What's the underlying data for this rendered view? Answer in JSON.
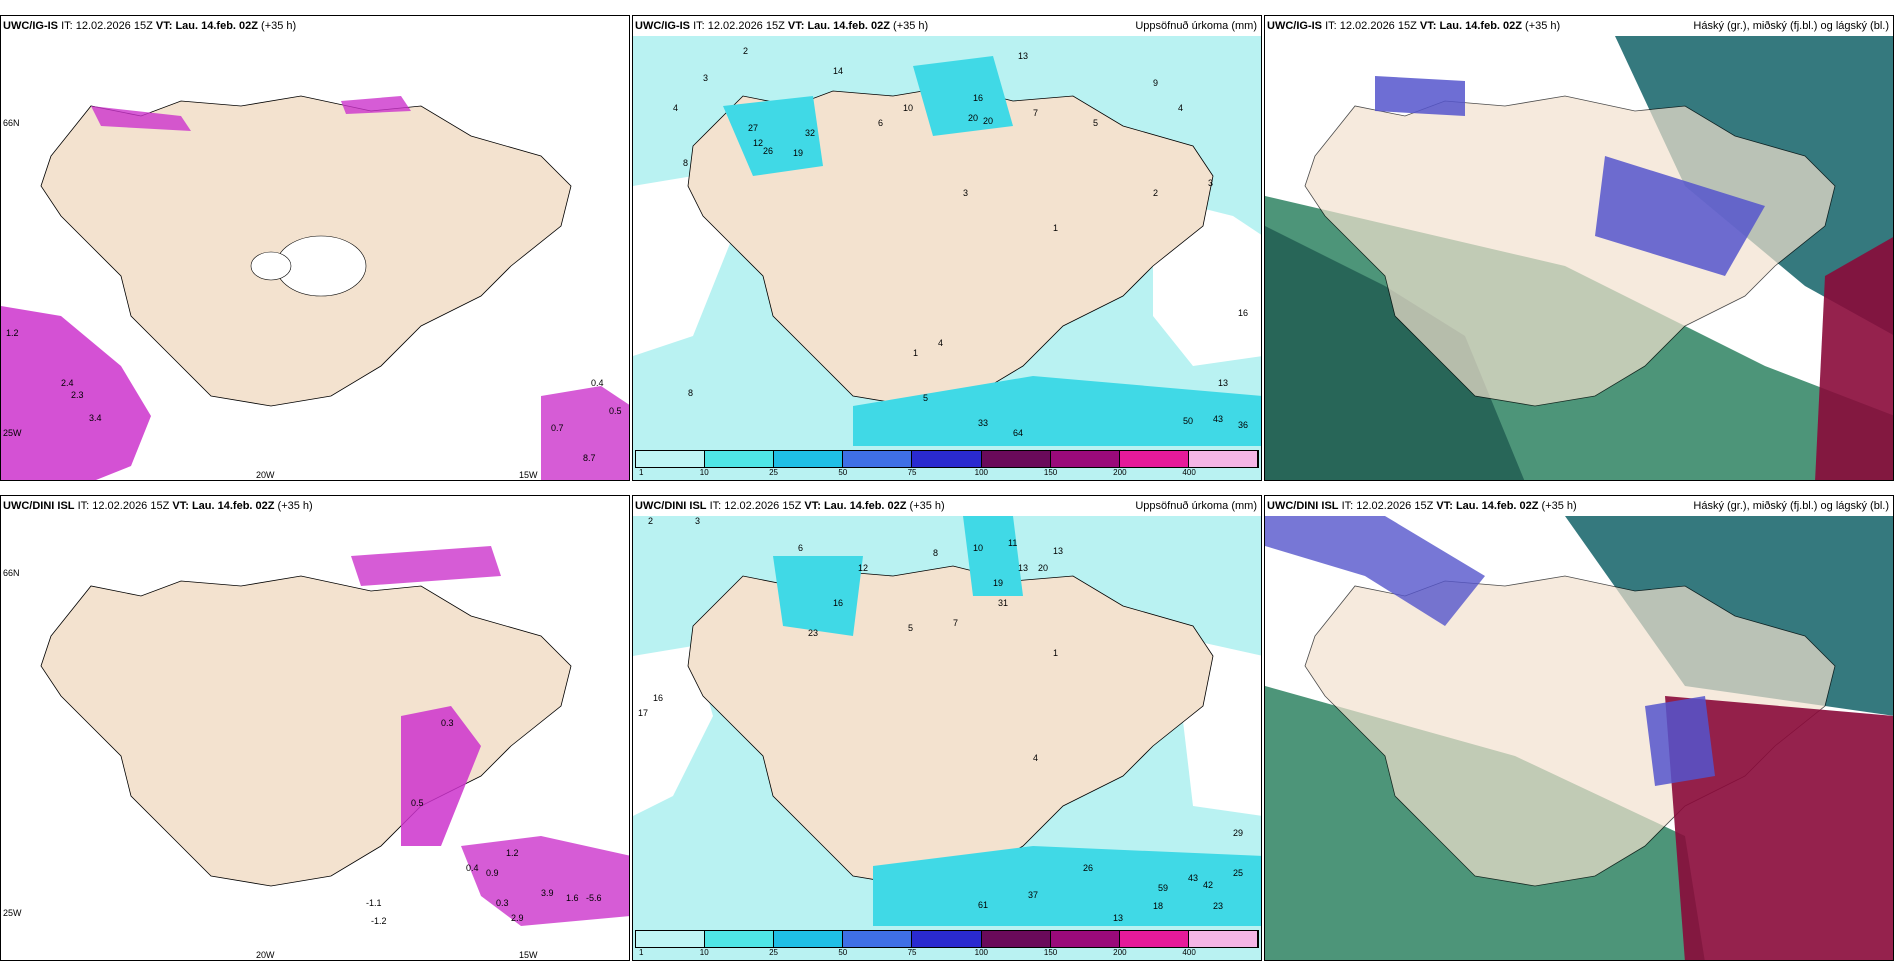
{
  "panels": [
    {
      "model": "UWC/IG-IS",
      "it_label": "IT:",
      "it": "12.02.2026 15Z",
      "vt_label": "VT:",
      "vt": "Lau. 14.feb. 02Z",
      "lead": "(+35 h)",
      "right": "",
      "kind": "wind"
    },
    {
      "model": "UWC/IG-IS",
      "it_label": "IT:",
      "it": "12.02.2026 15Z",
      "vt_label": "VT:",
      "vt": "Lau. 14.feb. 02Z",
      "lead": "(+35 h)",
      "right": "Uppsöfnuð úrkoma (mm)",
      "kind": "precip"
    },
    {
      "model": "UWC/IG-IS",
      "it_label": "IT:",
      "it": "12.02.2026 15Z",
      "vt_label": "VT:",
      "vt": "Lau. 14.feb. 02Z",
      "lead": "(+35 h)",
      "right": "Háský (gr.), miðský (fj.bl.) og lágský (bl.)",
      "kind": "cloud"
    },
    {
      "model": "UWC/DINI ISL",
      "it_label": "IT:",
      "it": "12.02.2026 15Z",
      "vt_label": "VT:",
      "vt": "Lau. 14.feb. 02Z",
      "lead": "(+35 h)",
      "right": "",
      "kind": "wind"
    },
    {
      "model": "UWC/DINI ISL",
      "it_label": "IT:",
      "it": "12.02.2026 15Z",
      "vt_label": "VT:",
      "vt": "Lau. 14.feb. 02Z",
      "lead": "(+35 h)",
      "right": "Uppsöfnuð úrkoma (mm)",
      "kind": "precip"
    },
    {
      "model": "UWC/DINI ISL",
      "it_label": "IT:",
      "it": "12.02.2026 15Z",
      "vt_label": "VT:",
      "vt": "Lau. 14.feb. 02Z",
      "lead": "(+35 h)",
      "right": "Háský (gr.), miðský (fj.bl.) og lágský (bl.)",
      "kind": "cloud"
    }
  ],
  "axis_labels": {
    "lat66": "66N",
    "lon25": "25W",
    "lon20": "20W",
    "lon15": "15W"
  },
  "scale": {
    "ticks": [
      "1",
      "10",
      "25",
      "50",
      "75",
      "100",
      "150",
      "200",
      "400"
    ],
    "colors": [
      "#bff5f5",
      "#4fe6e6",
      "#1fbfe6",
      "#3f6fe6",
      "#2a2acf",
      "#6a0a5a",
      "#9a0a7a",
      "#e61a9a",
      "#f5b5e6"
    ]
  },
  "colors": {
    "land": "#f3e2cf",
    "precip_light": "#b9f2f2",
    "precip_mid": "#40d9e6",
    "purple": "#cc33cc",
    "cloud_green": "#3a8a6a",
    "cloud_dark": "#1f5a50",
    "cloud_blue": "#5555cc",
    "cloud_red": "#8a0a3a"
  },
  "wind_values_top": [
    "1.2",
    "2.4",
    "2.3",
    "3.4",
    "0.4",
    "0.5",
    "0.7",
    "8.7"
  ],
  "wind_values_bottom": [
    "0.3",
    "0.5",
    "0.4",
    "0.9",
    "1.2",
    "3.9",
    "1.6",
    "-5.6",
    "2.9",
    "0.3",
    "-1.1",
    "-1.2"
  ],
  "precip_values_top": [
    "2",
    "14",
    "13",
    "12",
    "8",
    "3",
    "4",
    "27",
    "32",
    "26",
    "19",
    "10",
    "6",
    "16",
    "20",
    "20",
    "3",
    "7",
    "5",
    "9",
    "4",
    "3",
    "2",
    "1",
    "8",
    "16",
    "13",
    "33",
    "64",
    "50",
    "43",
    "36",
    "1",
    "4",
    "5"
  ],
  "precip_values_bottom": [
    "2",
    "3",
    "6",
    "8",
    "12",
    "10",
    "11",
    "13",
    "20",
    "13",
    "5",
    "19",
    "23",
    "16",
    "31",
    "7",
    "17",
    "16",
    "4",
    "1",
    "26",
    "59",
    "43",
    "42",
    "25",
    "29",
    "61",
    "37",
    "18",
    "13",
    "23"
  ]
}
